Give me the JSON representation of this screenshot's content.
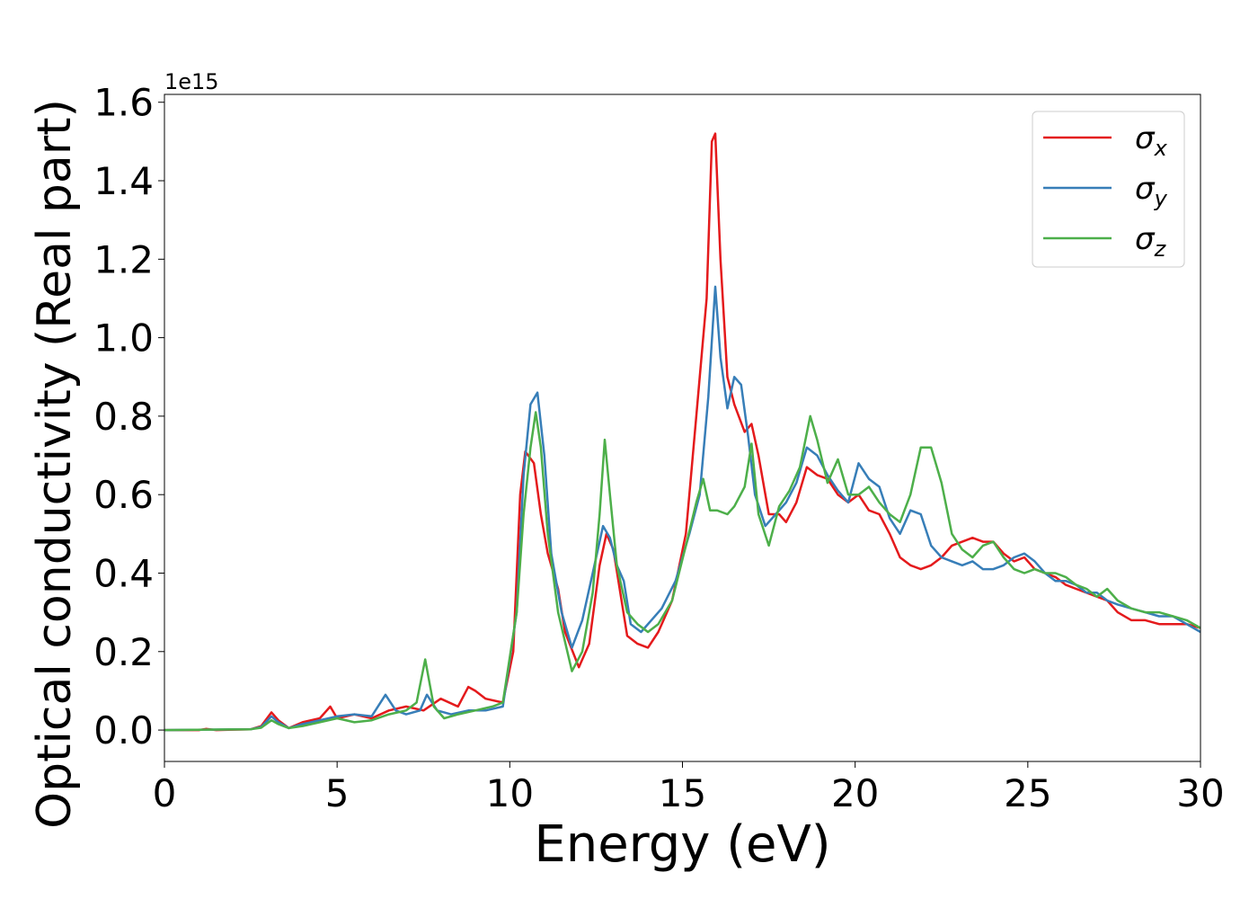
{
  "chart_data": {
    "type": "line",
    "xlabel": "Energy (eV)",
    "ylabel": "Optical conductivity (Real part)",
    "y_offset_label": "1e15",
    "xlim": [
      0,
      30
    ],
    "ylim": [
      -0.08,
      1.62
    ],
    "x_ticks": [
      0,
      5,
      10,
      15,
      20,
      25,
      30
    ],
    "x_tick_labels": [
      "0",
      "5",
      "10",
      "15",
      "20",
      "25",
      "30"
    ],
    "y_ticks": [
      0.0,
      0.2,
      0.4,
      0.6,
      0.8,
      1.0,
      1.2,
      1.4,
      1.6
    ],
    "y_tick_labels": [
      "0.0",
      "0.2",
      "0.4",
      "0.6",
      "0.8",
      "1.0",
      "1.2",
      "1.4",
      "1.6"
    ],
    "grid": false,
    "legend_position": "top-right",
    "series": [
      {
        "name": "σx",
        "symbol": "σ",
        "subscript": "x",
        "color": "#e41a1c",
        "points": [
          [
            0,
            0.0
          ],
          [
            1,
            0.0
          ],
          [
            1.2,
            0.003
          ],
          [
            1.5,
            0.0
          ],
          [
            2.5,
            0.002
          ],
          [
            2.8,
            0.01
          ],
          [
            3.1,
            0.045
          ],
          [
            3.3,
            0.025
          ],
          [
            3.6,
            0.005
          ],
          [
            4.0,
            0.02
          ],
          [
            4.5,
            0.03
          ],
          [
            4.8,
            0.06
          ],
          [
            5.0,
            0.03
          ],
          [
            5.5,
            0.04
          ],
          [
            6.0,
            0.03
          ],
          [
            6.5,
            0.05
          ],
          [
            7.0,
            0.06
          ],
          [
            7.5,
            0.05
          ],
          [
            8.0,
            0.08
          ],
          [
            8.5,
            0.06
          ],
          [
            8.8,
            0.11
          ],
          [
            9.0,
            0.1
          ],
          [
            9.3,
            0.08
          ],
          [
            9.8,
            0.07
          ],
          [
            10.1,
            0.2
          ],
          [
            10.3,
            0.6
          ],
          [
            10.45,
            0.71
          ],
          [
            10.7,
            0.68
          ],
          [
            10.9,
            0.55
          ],
          [
            11.1,
            0.45
          ],
          [
            11.4,
            0.36
          ],
          [
            11.6,
            0.25
          ],
          [
            12.0,
            0.16
          ],
          [
            12.3,
            0.22
          ],
          [
            12.6,
            0.42
          ],
          [
            12.8,
            0.5
          ],
          [
            13.0,
            0.46
          ],
          [
            13.2,
            0.35
          ],
          [
            13.4,
            0.24
          ],
          [
            13.7,
            0.22
          ],
          [
            14.0,
            0.21
          ],
          [
            14.3,
            0.25
          ],
          [
            14.7,
            0.33
          ],
          [
            15.1,
            0.5
          ],
          [
            15.4,
            0.8
          ],
          [
            15.7,
            1.1
          ],
          [
            15.85,
            1.5
          ],
          [
            15.95,
            1.52
          ],
          [
            16.1,
            1.2
          ],
          [
            16.3,
            0.9
          ],
          [
            16.5,
            0.83
          ],
          [
            16.8,
            0.76
          ],
          [
            17.0,
            0.78
          ],
          [
            17.2,
            0.7
          ],
          [
            17.5,
            0.55
          ],
          [
            17.8,
            0.55
          ],
          [
            18.0,
            0.53
          ],
          [
            18.3,
            0.58
          ],
          [
            18.6,
            0.67
          ],
          [
            18.9,
            0.65
          ],
          [
            19.2,
            0.64
          ],
          [
            19.5,
            0.6
          ],
          [
            19.8,
            0.58
          ],
          [
            20.1,
            0.6
          ],
          [
            20.4,
            0.56
          ],
          [
            20.7,
            0.55
          ],
          [
            21.0,
            0.5
          ],
          [
            21.3,
            0.44
          ],
          [
            21.6,
            0.42
          ],
          [
            21.9,
            0.41
          ],
          [
            22.2,
            0.42
          ],
          [
            22.5,
            0.44
          ],
          [
            22.8,
            0.47
          ],
          [
            23.1,
            0.48
          ],
          [
            23.4,
            0.49
          ],
          [
            23.7,
            0.48
          ],
          [
            24.0,
            0.48
          ],
          [
            24.3,
            0.45
          ],
          [
            24.6,
            0.43
          ],
          [
            24.9,
            0.44
          ],
          [
            25.2,
            0.41
          ],
          [
            25.5,
            0.4
          ],
          [
            25.8,
            0.39
          ],
          [
            26.1,
            0.37
          ],
          [
            26.4,
            0.36
          ],
          [
            26.7,
            0.35
          ],
          [
            27.0,
            0.34
          ],
          [
            27.3,
            0.33
          ],
          [
            27.6,
            0.3
          ],
          [
            28.0,
            0.28
          ],
          [
            28.4,
            0.28
          ],
          [
            28.8,
            0.27
          ],
          [
            29.2,
            0.27
          ],
          [
            29.6,
            0.27
          ],
          [
            30,
            0.26
          ]
        ]
      },
      {
        "name": "σy",
        "symbol": "σ",
        "subscript": "y",
        "color": "#377eb8",
        "points": [
          [
            0,
            0.0
          ],
          [
            2.5,
            0.002
          ],
          [
            2.8,
            0.008
          ],
          [
            3.1,
            0.035
          ],
          [
            3.3,
            0.02
          ],
          [
            3.6,
            0.005
          ],
          [
            4.0,
            0.015
          ],
          [
            4.5,
            0.025
          ],
          [
            5.0,
            0.035
          ],
          [
            5.5,
            0.04
          ],
          [
            6.0,
            0.035
          ],
          [
            6.4,
            0.09
          ],
          [
            6.7,
            0.05
          ],
          [
            7.0,
            0.04
          ],
          [
            7.4,
            0.05
          ],
          [
            7.6,
            0.09
          ],
          [
            7.9,
            0.05
          ],
          [
            8.3,
            0.04
          ],
          [
            8.8,
            0.05
          ],
          [
            9.3,
            0.05
          ],
          [
            9.8,
            0.06
          ],
          [
            10.2,
            0.3
          ],
          [
            10.4,
            0.65
          ],
          [
            10.6,
            0.83
          ],
          [
            10.8,
            0.86
          ],
          [
            11.0,
            0.7
          ],
          [
            11.2,
            0.45
          ],
          [
            11.5,
            0.3
          ],
          [
            11.8,
            0.21
          ],
          [
            12.1,
            0.28
          ],
          [
            12.4,
            0.4
          ],
          [
            12.7,
            0.52
          ],
          [
            12.9,
            0.49
          ],
          [
            13.1,
            0.42
          ],
          [
            13.3,
            0.38
          ],
          [
            13.5,
            0.27
          ],
          [
            13.8,
            0.25
          ],
          [
            14.1,
            0.28
          ],
          [
            14.4,
            0.31
          ],
          [
            14.8,
            0.38
          ],
          [
            15.2,
            0.5
          ],
          [
            15.5,
            0.6
          ],
          [
            15.75,
            0.85
          ],
          [
            15.95,
            1.13
          ],
          [
            16.1,
            0.95
          ],
          [
            16.3,
            0.82
          ],
          [
            16.5,
            0.9
          ],
          [
            16.7,
            0.88
          ],
          [
            16.9,
            0.75
          ],
          [
            17.1,
            0.6
          ],
          [
            17.4,
            0.52
          ],
          [
            17.7,
            0.55
          ],
          [
            18.0,
            0.58
          ],
          [
            18.3,
            0.63
          ],
          [
            18.6,
            0.72
          ],
          [
            18.9,
            0.7
          ],
          [
            19.2,
            0.65
          ],
          [
            19.5,
            0.61
          ],
          [
            19.8,
            0.58
          ],
          [
            20.1,
            0.68
          ],
          [
            20.4,
            0.64
          ],
          [
            20.7,
            0.62
          ],
          [
            21.0,
            0.54
          ],
          [
            21.3,
            0.5
          ],
          [
            21.6,
            0.56
          ],
          [
            21.9,
            0.55
          ],
          [
            22.2,
            0.47
          ],
          [
            22.5,
            0.44
          ],
          [
            22.8,
            0.43
          ],
          [
            23.1,
            0.42
          ],
          [
            23.4,
            0.43
          ],
          [
            23.7,
            0.41
          ],
          [
            24.0,
            0.41
          ],
          [
            24.3,
            0.42
          ],
          [
            24.6,
            0.44
          ],
          [
            24.9,
            0.45
          ],
          [
            25.2,
            0.43
          ],
          [
            25.5,
            0.4
          ],
          [
            25.8,
            0.38
          ],
          [
            26.1,
            0.38
          ],
          [
            26.4,
            0.37
          ],
          [
            26.7,
            0.35
          ],
          [
            27.0,
            0.35
          ],
          [
            27.3,
            0.33
          ],
          [
            27.6,
            0.32
          ],
          [
            28.0,
            0.31
          ],
          [
            28.4,
            0.3
          ],
          [
            28.8,
            0.29
          ],
          [
            29.2,
            0.29
          ],
          [
            29.6,
            0.27
          ],
          [
            30,
            0.25
          ]
        ]
      },
      {
        "name": "σz",
        "symbol": "σ",
        "subscript": "z",
        "color": "#4daf4a",
        "points": [
          [
            0,
            0.0
          ],
          [
            2.5,
            0.002
          ],
          [
            2.8,
            0.006
          ],
          [
            3.1,
            0.025
          ],
          [
            3.3,
            0.015
          ],
          [
            3.6,
            0.005
          ],
          [
            4.0,
            0.01
          ],
          [
            4.5,
            0.02
          ],
          [
            5.0,
            0.03
          ],
          [
            5.5,
            0.02
          ],
          [
            6.0,
            0.025
          ],
          [
            6.5,
            0.04
          ],
          [
            7.0,
            0.05
          ],
          [
            7.3,
            0.07
          ],
          [
            7.55,
            0.18
          ],
          [
            7.8,
            0.06
          ],
          [
            8.1,
            0.03
          ],
          [
            8.5,
            0.04
          ],
          [
            9.0,
            0.05
          ],
          [
            9.5,
            0.06
          ],
          [
            9.8,
            0.07
          ],
          [
            10.2,
            0.3
          ],
          [
            10.4,
            0.55
          ],
          [
            10.6,
            0.72
          ],
          [
            10.75,
            0.81
          ],
          [
            10.9,
            0.72
          ],
          [
            11.1,
            0.5
          ],
          [
            11.4,
            0.3
          ],
          [
            11.8,
            0.15
          ],
          [
            12.1,
            0.2
          ],
          [
            12.4,
            0.35
          ],
          [
            12.6,
            0.55
          ],
          [
            12.75,
            0.74
          ],
          [
            12.9,
            0.6
          ],
          [
            13.1,
            0.42
          ],
          [
            13.4,
            0.3
          ],
          [
            13.7,
            0.27
          ],
          [
            14.0,
            0.25
          ],
          [
            14.3,
            0.27
          ],
          [
            14.7,
            0.33
          ],
          [
            15.1,
            0.47
          ],
          [
            15.4,
            0.58
          ],
          [
            15.6,
            0.64
          ],
          [
            15.8,
            0.56
          ],
          [
            16.0,
            0.56
          ],
          [
            16.3,
            0.55
          ],
          [
            16.5,
            0.57
          ],
          [
            16.8,
            0.62
          ],
          [
            17.0,
            0.73
          ],
          [
            17.2,
            0.55
          ],
          [
            17.5,
            0.47
          ],
          [
            17.8,
            0.57
          ],
          [
            18.1,
            0.61
          ],
          [
            18.4,
            0.67
          ],
          [
            18.7,
            0.8
          ],
          [
            18.9,
            0.74
          ],
          [
            19.2,
            0.63
          ],
          [
            19.5,
            0.69
          ],
          [
            19.8,
            0.6
          ],
          [
            20.1,
            0.6
          ],
          [
            20.4,
            0.62
          ],
          [
            20.7,
            0.58
          ],
          [
            21.0,
            0.55
          ],
          [
            21.3,
            0.53
          ],
          [
            21.6,
            0.6
          ],
          [
            21.9,
            0.72
          ],
          [
            22.2,
            0.72
          ],
          [
            22.5,
            0.63
          ],
          [
            22.8,
            0.5
          ],
          [
            23.1,
            0.46
          ],
          [
            23.4,
            0.44
          ],
          [
            23.7,
            0.47
          ],
          [
            24.0,
            0.48
          ],
          [
            24.3,
            0.44
          ],
          [
            24.6,
            0.41
          ],
          [
            24.9,
            0.4
          ],
          [
            25.2,
            0.41
          ],
          [
            25.5,
            0.4
          ],
          [
            25.8,
            0.4
          ],
          [
            26.1,
            0.39
          ],
          [
            26.4,
            0.37
          ],
          [
            26.7,
            0.36
          ],
          [
            27.0,
            0.34
          ],
          [
            27.3,
            0.36
          ],
          [
            27.6,
            0.33
          ],
          [
            28.0,
            0.31
          ],
          [
            28.4,
            0.3
          ],
          [
            28.8,
            0.3
          ],
          [
            29.2,
            0.29
          ],
          [
            29.6,
            0.28
          ],
          [
            30,
            0.26
          ]
        ]
      }
    ]
  }
}
